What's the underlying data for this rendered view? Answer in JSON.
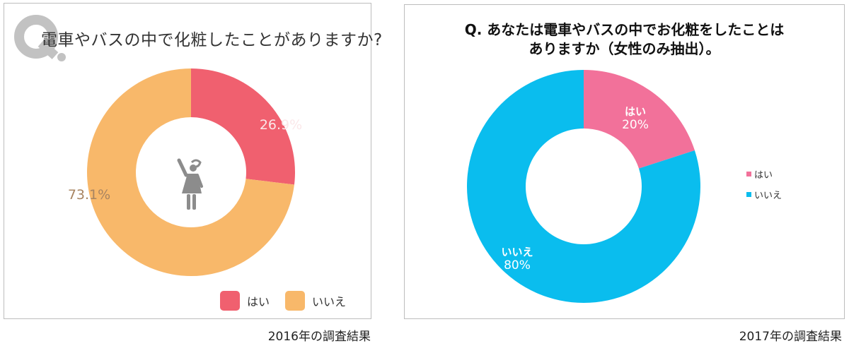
{
  "chart_data": [
    {
      "type": "pie",
      "variant": "donut",
      "title": "電車やバスの中で化粧したことがありますか?",
      "logo_text": "Q.",
      "caption": "2016年の調査結果",
      "categories": [
        "はい",
        "いいえ"
      ],
      "values": [
        26.9,
        73.1
      ],
      "value_labels": [
        "26.9%",
        "73.1%"
      ],
      "colors": [
        "#f0606f",
        "#f8b86a"
      ],
      "legend": {
        "position": "bottom-right",
        "entries": [
          "はい",
          "いいえ"
        ]
      },
      "center_icon": "woman-raising-hand-icon"
    },
    {
      "type": "pie",
      "variant": "donut",
      "title_lines": [
        "Q.  あなたは電車やバスの中でお化粧をしたことは",
        "ありますか（女性のみ抽出）。"
      ],
      "caption": "2017年の調査結果",
      "categories": [
        "はい",
        "いいえ"
      ],
      "values": [
        20,
        80
      ],
      "value_labels": [
        "20%",
        "80%"
      ],
      "colors": [
        "#f2719a",
        "#0abdee"
      ],
      "legend": {
        "position": "right",
        "entries": [
          "はい",
          "いいえ"
        ]
      }
    }
  ]
}
